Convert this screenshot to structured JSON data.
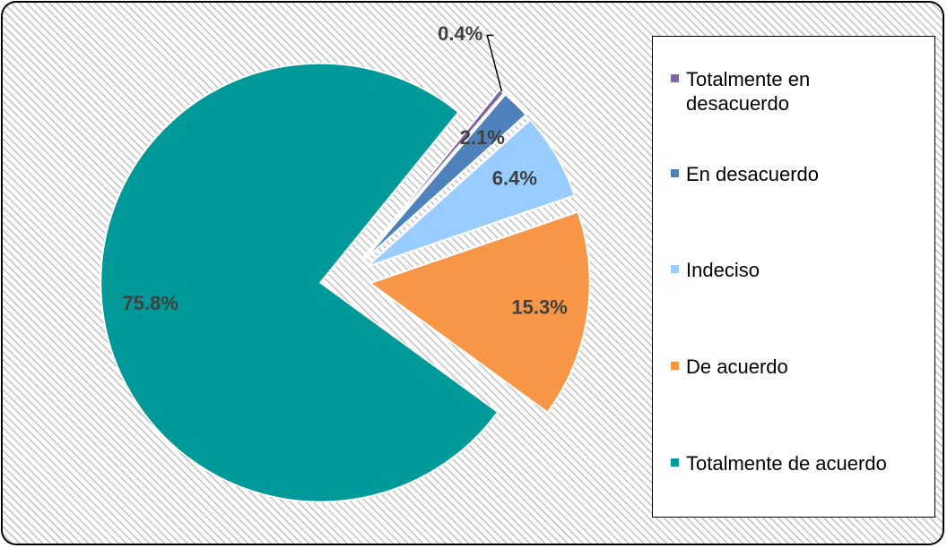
{
  "chart_data": {
    "type": "pie",
    "categories": [
      "Totalmente en desacuerdo",
      "En desacuerdo",
      "Indeciso",
      "De acuerdo",
      "Totalmente de acuerdo"
    ],
    "values": [
      0.4,
      2.1,
      6.4,
      15.3,
      75.8
    ],
    "value_labels": [
      "0.4%",
      "2.1%",
      "6.4%",
      "15.3%",
      "75.8%"
    ],
    "colors": [
      "#7f64a2",
      "#4f81bd",
      "#99ccff",
      "#f79646",
      "#009999"
    ],
    "legend": "right"
  }
}
